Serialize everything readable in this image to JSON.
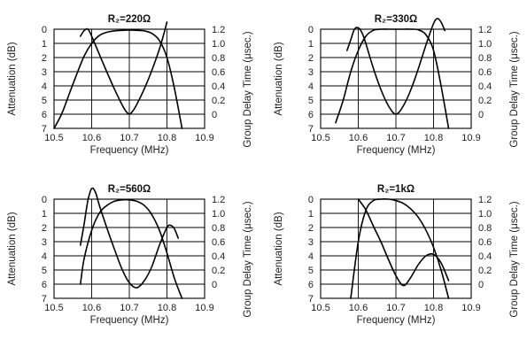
{
  "chart_data": [
    {
      "type": "line",
      "title": "R₂=220Ω",
      "xlabel": "Frequency (MHz)",
      "ylabel": "Attenuation (dB)",
      "y2label": "Group Delay Time (μsec.)",
      "xlim": [
        10.5,
        10.9
      ],
      "ylim": [
        0,
        7
      ],
      "y2lim": [
        -0.2,
        1.2
      ],
      "x_ticks": [
        "10.5",
        "10.6",
        "10.7",
        "10.8",
        "10.9"
      ],
      "y_ticks": [
        "0",
        "1",
        "2",
        "3",
        "4",
        "5",
        "6",
        "7"
      ],
      "y2_ticks": [
        "1.2",
        "1.0",
        "0.8",
        "0.6",
        "0.4",
        "0.2",
        "0"
      ],
      "grid": true,
      "series": [
        {
          "axis": "left",
          "x": [
            10.5,
            10.52,
            10.54,
            10.56,
            10.58,
            10.6,
            10.62,
            10.64,
            10.66,
            10.68,
            10.7,
            10.72,
            10.74,
            10.76,
            10.78,
            10.8,
            10.82,
            10.84
          ],
          "y": [
            7.0,
            6.0,
            4.6,
            3.2,
            1.9,
            1.0,
            0.45,
            0.22,
            0.12,
            0.08,
            0.06,
            0.08,
            0.12,
            0.3,
            0.8,
            2.0,
            4.2,
            7.0
          ]
        },
        {
          "axis": "right",
          "x": [
            10.57,
            10.58,
            10.59,
            10.6,
            10.62,
            10.64,
            10.66,
            10.68,
            10.69,
            10.7,
            10.71,
            10.72,
            10.74,
            10.76,
            10.78,
            10.79,
            10.8
          ],
          "y": [
            1.1,
            1.18,
            1.2,
            1.1,
            0.85,
            0.6,
            0.36,
            0.14,
            0.05,
            0.0,
            0.05,
            0.14,
            0.36,
            0.62,
            0.92,
            1.1,
            1.3
          ]
        }
      ]
    },
    {
      "type": "line",
      "title": "R₂=330Ω",
      "xlabel": "Frequency (MHz)",
      "ylabel": "Attenuation (dB)",
      "y2label": "Group Delay Time (μsec.)",
      "xlim": [
        10.5,
        10.9
      ],
      "ylim": [
        0,
        7
      ],
      "y2lim": [
        -0.2,
        1.2
      ],
      "x_ticks": [
        "10.5",
        "10.6",
        "10.7",
        "10.8",
        "10.9"
      ],
      "y_ticks": [
        "0",
        "1",
        "2",
        "3",
        "4",
        "5",
        "6",
        "7"
      ],
      "y2_ticks": [
        "1.2",
        "1.0",
        "0.8",
        "0.6",
        "0.4",
        "0.2",
        "0"
      ],
      "grid": true,
      "series": [
        {
          "axis": "left",
          "x": [
            10.54,
            10.56,
            10.58,
            10.6,
            10.62,
            10.64,
            10.66,
            10.68,
            10.7,
            10.72,
            10.74,
            10.76,
            10.78,
            10.8,
            10.82,
            10.84
          ],
          "y": [
            6.6,
            5.0,
            3.0,
            1.5,
            0.5,
            0.08,
            0.0,
            0.0,
            0.0,
            0.0,
            0.0,
            0.05,
            0.4,
            1.5,
            4.0,
            7.0
          ]
        },
        {
          "axis": "right",
          "x": [
            10.57,
            10.58,
            10.59,
            10.6,
            10.61,
            10.62,
            10.64,
            10.66,
            10.68,
            10.7,
            10.72,
            10.74,
            10.76,
            10.78,
            10.8,
            10.81,
            10.82,
            10.83
          ],
          "y": [
            0.9,
            1.05,
            1.2,
            1.22,
            1.15,
            1.0,
            0.65,
            0.35,
            0.12,
            0.0,
            0.12,
            0.35,
            0.65,
            0.98,
            1.28,
            1.35,
            1.3,
            1.18
          ]
        }
      ]
    },
    {
      "type": "line",
      "title": "R₂=560Ω",
      "xlabel": "Frequency (MHz)",
      "ylabel": "Attenuation (dB)",
      "y2label": "Group Delay Time (μsec.)",
      "xlim": [
        10.5,
        10.9
      ],
      "ylim": [
        0,
        7
      ],
      "y2lim": [
        -0.2,
        1.2
      ],
      "x_ticks": [
        "10.5",
        "10.6",
        "10.7",
        "10.8",
        "10.9"
      ],
      "y_ticks": [
        "0",
        "1",
        "2",
        "3",
        "4",
        "5",
        "6",
        "7"
      ],
      "y2_ticks": [
        "1.2",
        "1.0",
        "0.8",
        "0.6",
        "0.4",
        "0.2",
        "0"
      ],
      "grid": true,
      "series": [
        {
          "axis": "left",
          "x": [
            10.57,
            10.58,
            10.6,
            10.62,
            10.64,
            10.66,
            10.68,
            10.7,
            10.72,
            10.74,
            10.76,
            10.78,
            10.8,
            10.82,
            10.84
          ],
          "y": [
            6.0,
            4.2,
            2.2,
            1.0,
            0.45,
            0.15,
            0.05,
            0.05,
            0.15,
            0.45,
            1.1,
            2.2,
            3.8,
            5.6,
            7.0
          ]
        },
        {
          "axis": "right",
          "x": [
            10.57,
            10.58,
            10.59,
            10.6,
            10.61,
            10.62,
            10.64,
            10.66,
            10.68,
            10.7,
            10.72,
            10.74,
            10.76,
            10.78,
            10.8,
            10.81,
            10.82,
            10.83
          ],
          "y": [
            0.55,
            0.85,
            1.18,
            1.35,
            1.3,
            1.12,
            0.8,
            0.5,
            0.22,
            0.02,
            -0.05,
            0.05,
            0.25,
            0.55,
            0.8,
            0.83,
            0.78,
            0.65
          ]
        }
      ]
    },
    {
      "type": "line",
      "title": "R₂=1kΩ",
      "xlabel": "Frequency (MHz)",
      "ylabel": "Attenuation (dB)",
      "y2label": "Group Delay Time (μsec.)",
      "xlim": [
        10.5,
        10.9
      ],
      "ylim": [
        0,
        7
      ],
      "y2lim": [
        -0.2,
        1.2
      ],
      "x_ticks": [
        "10.5",
        "10.6",
        "10.7",
        "10.8",
        "10.9"
      ],
      "y_ticks": [
        "0",
        "1",
        "2",
        "3",
        "4",
        "5",
        "6",
        "7"
      ],
      "y2_ticks": [
        "1.2",
        "1.0",
        "0.8",
        "0.6",
        "0.4",
        "0.2",
        "0"
      ],
      "grid": true,
      "series": [
        {
          "axis": "left",
          "x": [
            10.58,
            10.6,
            10.62,
            10.64,
            10.66,
            10.68,
            10.7,
            10.72,
            10.74,
            10.76,
            10.78,
            10.8,
            10.82,
            10.84
          ],
          "y": [
            7.0,
            3.0,
            0.8,
            0.1,
            0.0,
            0.0,
            0.1,
            0.3,
            0.7,
            1.3,
            2.2,
            3.4,
            5.0,
            7.0
          ]
        },
        {
          "axis": "right",
          "x": [
            10.6,
            10.62,
            10.64,
            10.66,
            10.68,
            10.7,
            10.72,
            10.74,
            10.76,
            10.78,
            10.8,
            10.82,
            10.84
          ],
          "y": [
            1.2,
            1.05,
            0.82,
            0.6,
            0.35,
            0.12,
            -0.02,
            0.1,
            0.28,
            0.4,
            0.42,
            0.3,
            0.05
          ]
        }
      ]
    }
  ]
}
